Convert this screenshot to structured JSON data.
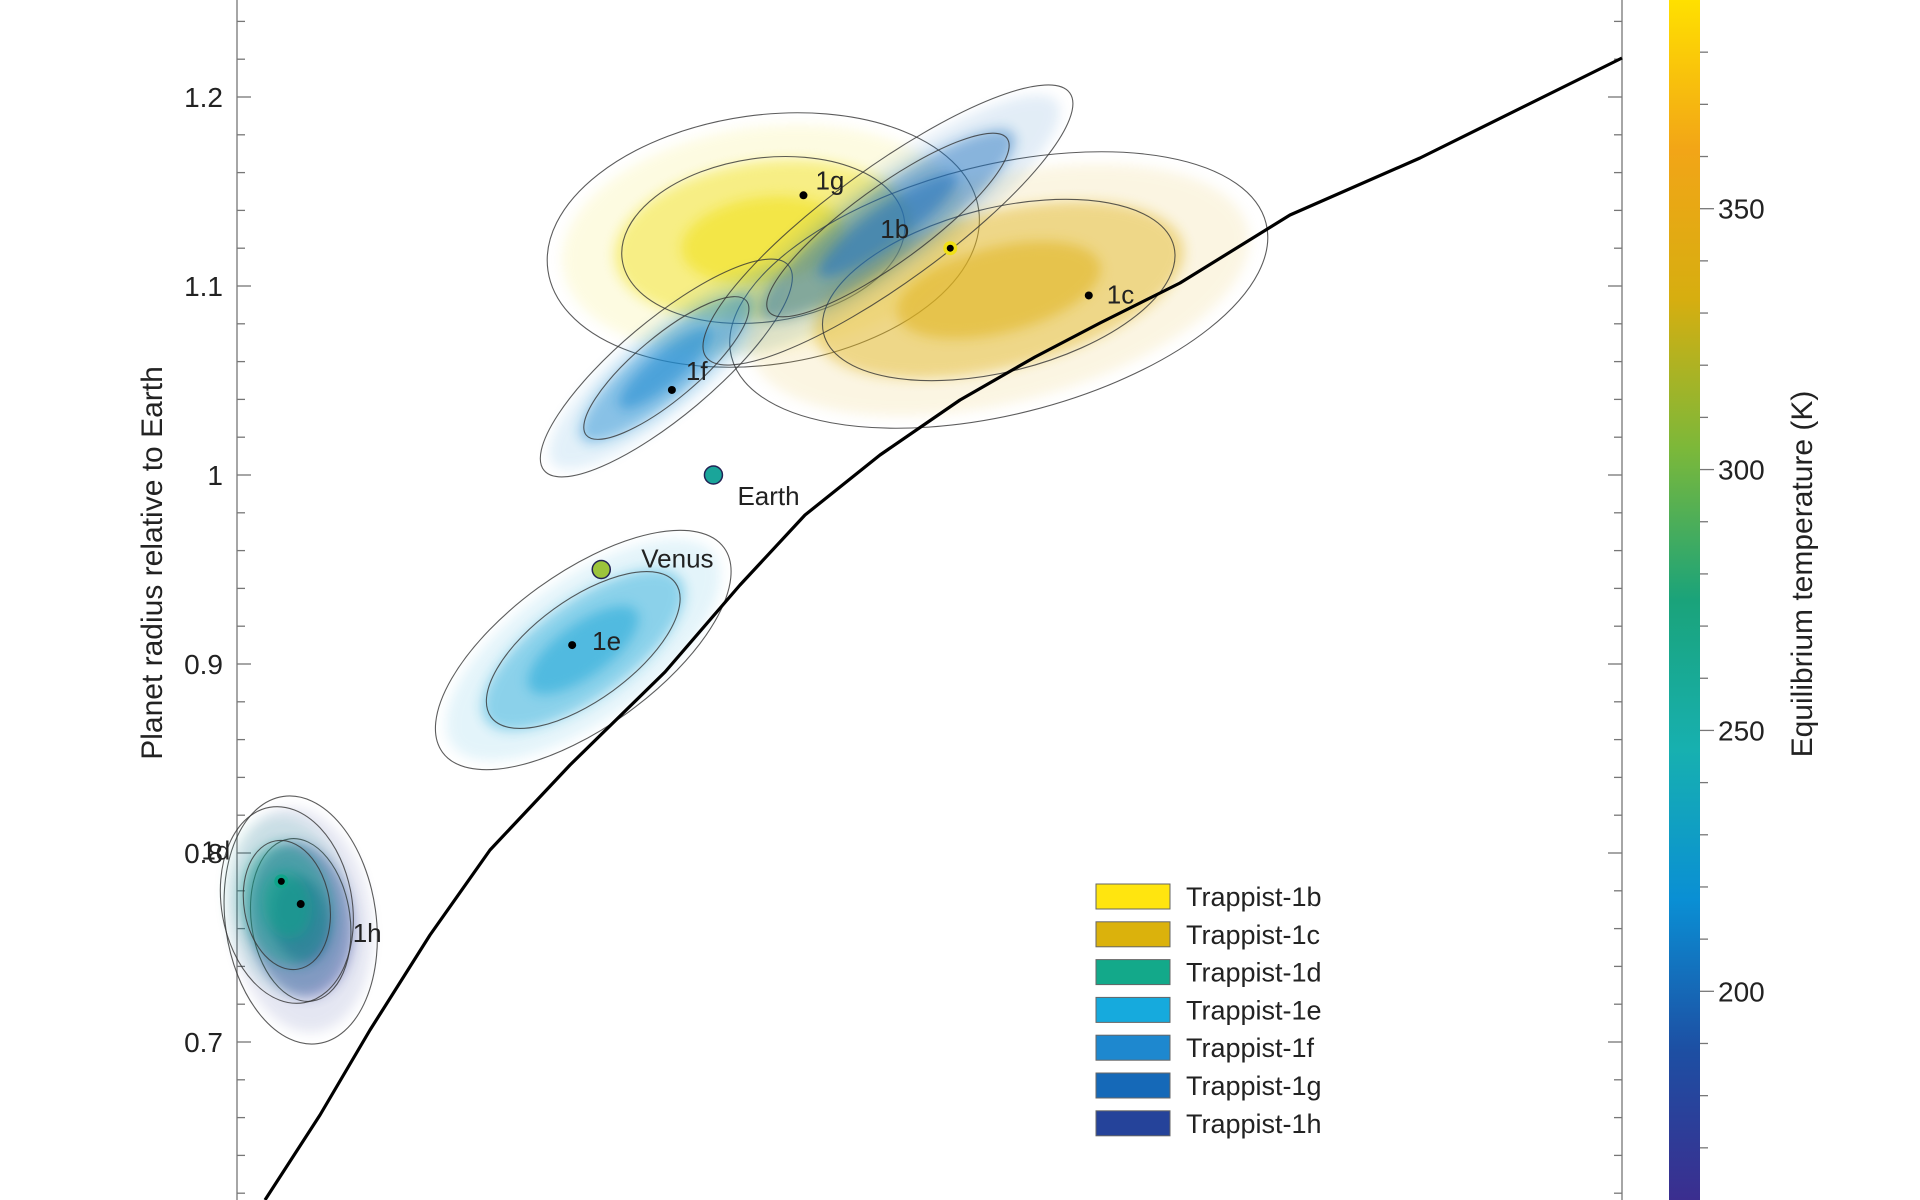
{
  "chart_data": {
    "type": "scatter",
    "ylabel": "Planet radius relative to Earth",
    "y_ticks": [
      "0.7",
      "0.8",
      "0.9",
      "1",
      "1.1",
      "1.2"
    ],
    "colorbar": {
      "label": "Equilibrium temperature (K)",
      "ticks": [
        "200",
        "250",
        "300",
        "350"
      ],
      "range": [
        160,
        390
      ],
      "colormap": [
        "#3b2e8f",
        "#1d4fa3",
        "#0a8fd4",
        "#17b0b0",
        "#1aa37a",
        "#7bb83a",
        "#d6ae10",
        "#f2a517",
        "#ffe000"
      ]
    },
    "planets": [
      {
        "label": "1b",
        "y": 1.12,
        "color": "#f0e015"
      },
      {
        "label": "1c",
        "y": 1.095,
        "color": "#e0b31a"
      },
      {
        "label": "1d",
        "y": 0.785,
        "color": "#10a48a"
      },
      {
        "label": "1e",
        "y": 0.91,
        "color": "#22a8d8"
      },
      {
        "label": "1f",
        "y": 1.045,
        "color": "#1a8ad0"
      },
      {
        "label": "1g",
        "y": 1.148,
        "color": "#1a6fbe"
      },
      {
        "label": "1h",
        "y": 0.773,
        "color": "#2d3e98"
      }
    ],
    "reference_planets": [
      {
        "label": "Earth",
        "y": 1.0,
        "color": "#1aa59a"
      },
      {
        "label": "Venus",
        "y": 0.95,
        "color": "#9cc43c"
      }
    ],
    "legend": [
      {
        "label": "Trappist-1b",
        "color": "#ffe50f"
      },
      {
        "label": "Trappist-1c",
        "color": "#dbb20c"
      },
      {
        "label": "Trappist-1d",
        "color": "#13a98a"
      },
      {
        "label": "Trappist-1e",
        "color": "#16aadd"
      },
      {
        "label": "Trappist-1f",
        "color": "#1e88cf"
      },
      {
        "label": "Trappist-1g",
        "color": "#1569b8"
      },
      {
        "label": "Trappist-1h",
        "color": "#25439a"
      }
    ],
    "ylim": [
      0.62,
      1.25
    ]
  }
}
